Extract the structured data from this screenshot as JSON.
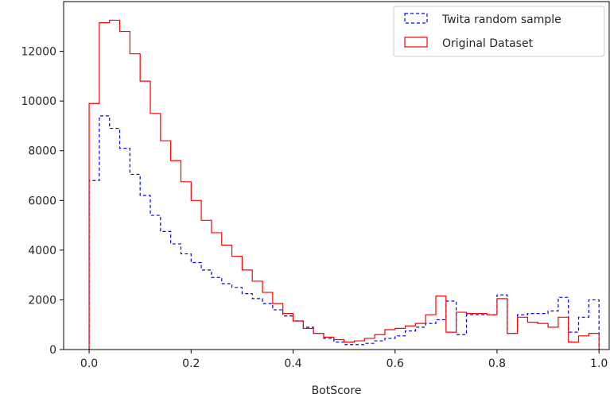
{
  "chart_data": {
    "type": "histogram-step",
    "xlabel": "BotScore",
    "ylabel": "",
    "title": "",
    "xlim": [
      -0.05,
      1.02
    ],
    "ylim": [
      0,
      14000
    ],
    "x_ticks": [
      0.0,
      0.2,
      0.4,
      0.6,
      0.8,
      1.0
    ],
    "x_tick_labels": [
      "0.0",
      "0.2",
      "0.4",
      "0.6",
      "0.8",
      "1.0"
    ],
    "y_ticks": [
      0,
      2000,
      4000,
      6000,
      8000,
      10000,
      12000
    ],
    "y_tick_labels": [
      "0",
      "2000",
      "4000",
      "6000",
      "8000",
      "10000",
      "12000"
    ],
    "grid": false,
    "legend_position": "top-right",
    "bin_edges": [
      0.0,
      0.02,
      0.04,
      0.06,
      0.08,
      0.1,
      0.12,
      0.14,
      0.16,
      0.18,
      0.2,
      0.22,
      0.24,
      0.26,
      0.28,
      0.3,
      0.32,
      0.34,
      0.36,
      0.38,
      0.4,
      0.42,
      0.44,
      0.46,
      0.48,
      0.5,
      0.52,
      0.54,
      0.56,
      0.58,
      0.6,
      0.62,
      0.64,
      0.66,
      0.68,
      0.7,
      0.72,
      0.74,
      0.76,
      0.78,
      0.8,
      0.82,
      0.84,
      0.86,
      0.88,
      0.9,
      0.92,
      0.94,
      0.96,
      0.98,
      1.0
    ],
    "series": [
      {
        "name": "Twita random sample",
        "color": "#0000ff",
        "linestyle": "dashed",
        "values": [
          6800,
          9400,
          8900,
          8100,
          7050,
          6200,
          5400,
          4750,
          4250,
          3850,
          3500,
          3200,
          2900,
          2650,
          2500,
          2250,
          2050,
          1850,
          1600,
          1350,
          1150,
          900,
          650,
          450,
          300,
          200,
          200,
          250,
          350,
          450,
          550,
          750,
          900,
          1050,
          1200,
          1950,
          600,
          1400,
          1400,
          1400,
          2200,
          650,
          1400,
          1450,
          1450,
          1550,
          2100,
          700,
          1300,
          2000
        ]
      },
      {
        "name": "Original Dataset",
        "color": "#ff0000",
        "linestyle": "solid",
        "values": [
          9900,
          13150,
          13250,
          12800,
          11900,
          10800,
          9500,
          8400,
          7600,
          6750,
          6000,
          5200,
          4700,
          4200,
          3750,
          3200,
          2750,
          2300,
          1850,
          1450,
          1150,
          850,
          650,
          500,
          400,
          300,
          350,
          450,
          600,
          800,
          850,
          950,
          1050,
          1400,
          2150,
          700,
          1500,
          1450,
          1450,
          1400,
          2050,
          650,
          1300,
          1100,
          1050,
          900,
          1300,
          300,
          550,
          650
        ]
      }
    ]
  }
}
